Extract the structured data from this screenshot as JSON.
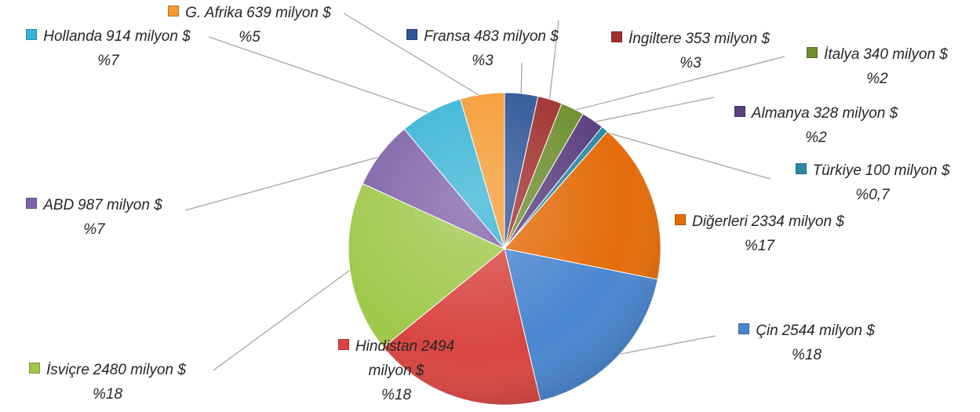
{
  "chart_data": {
    "type": "pie",
    "categories": [
      "Fransa",
      "İngiltere",
      "İtalya",
      "Almanya",
      "Türkiye",
      "Diğerleri",
      "Çin",
      "Hindistan",
      "İsviçre",
      "ABD",
      "Hollanda",
      "G. Afrika"
    ],
    "values": [
      483,
      353,
      340,
      328,
      100,
      2334,
      2544,
      2494,
      2480,
      987,
      914,
      639
    ],
    "value_labels": [
      "483 milyon $",
      "353 milyon $",
      "340 milyon $",
      "328 milyon $",
      "100 milyon $",
      "2334 milyon $",
      "2544 milyon $",
      "2494 milyon $",
      "2480 milyon $",
      "987 milyon $",
      "914 milyon $",
      "639 milyon $"
    ],
    "percent_labels": [
      "%3",
      "%3",
      "%2",
      "%2",
      "%0,7",
      "%17",
      "%18",
      "%18",
      "%18",
      "%7",
      "%7",
      "%5"
    ],
    "colors": [
      "#2e5597",
      "#a0302e",
      "#6e8f2f",
      "#5b3f7f",
      "#2b8aa3",
      "#e46c0a",
      "#4a86d0",
      "#d84541",
      "#9fc84a",
      "#8062a8",
      "#38b4d6",
      "#f59a32"
    ]
  }
}
